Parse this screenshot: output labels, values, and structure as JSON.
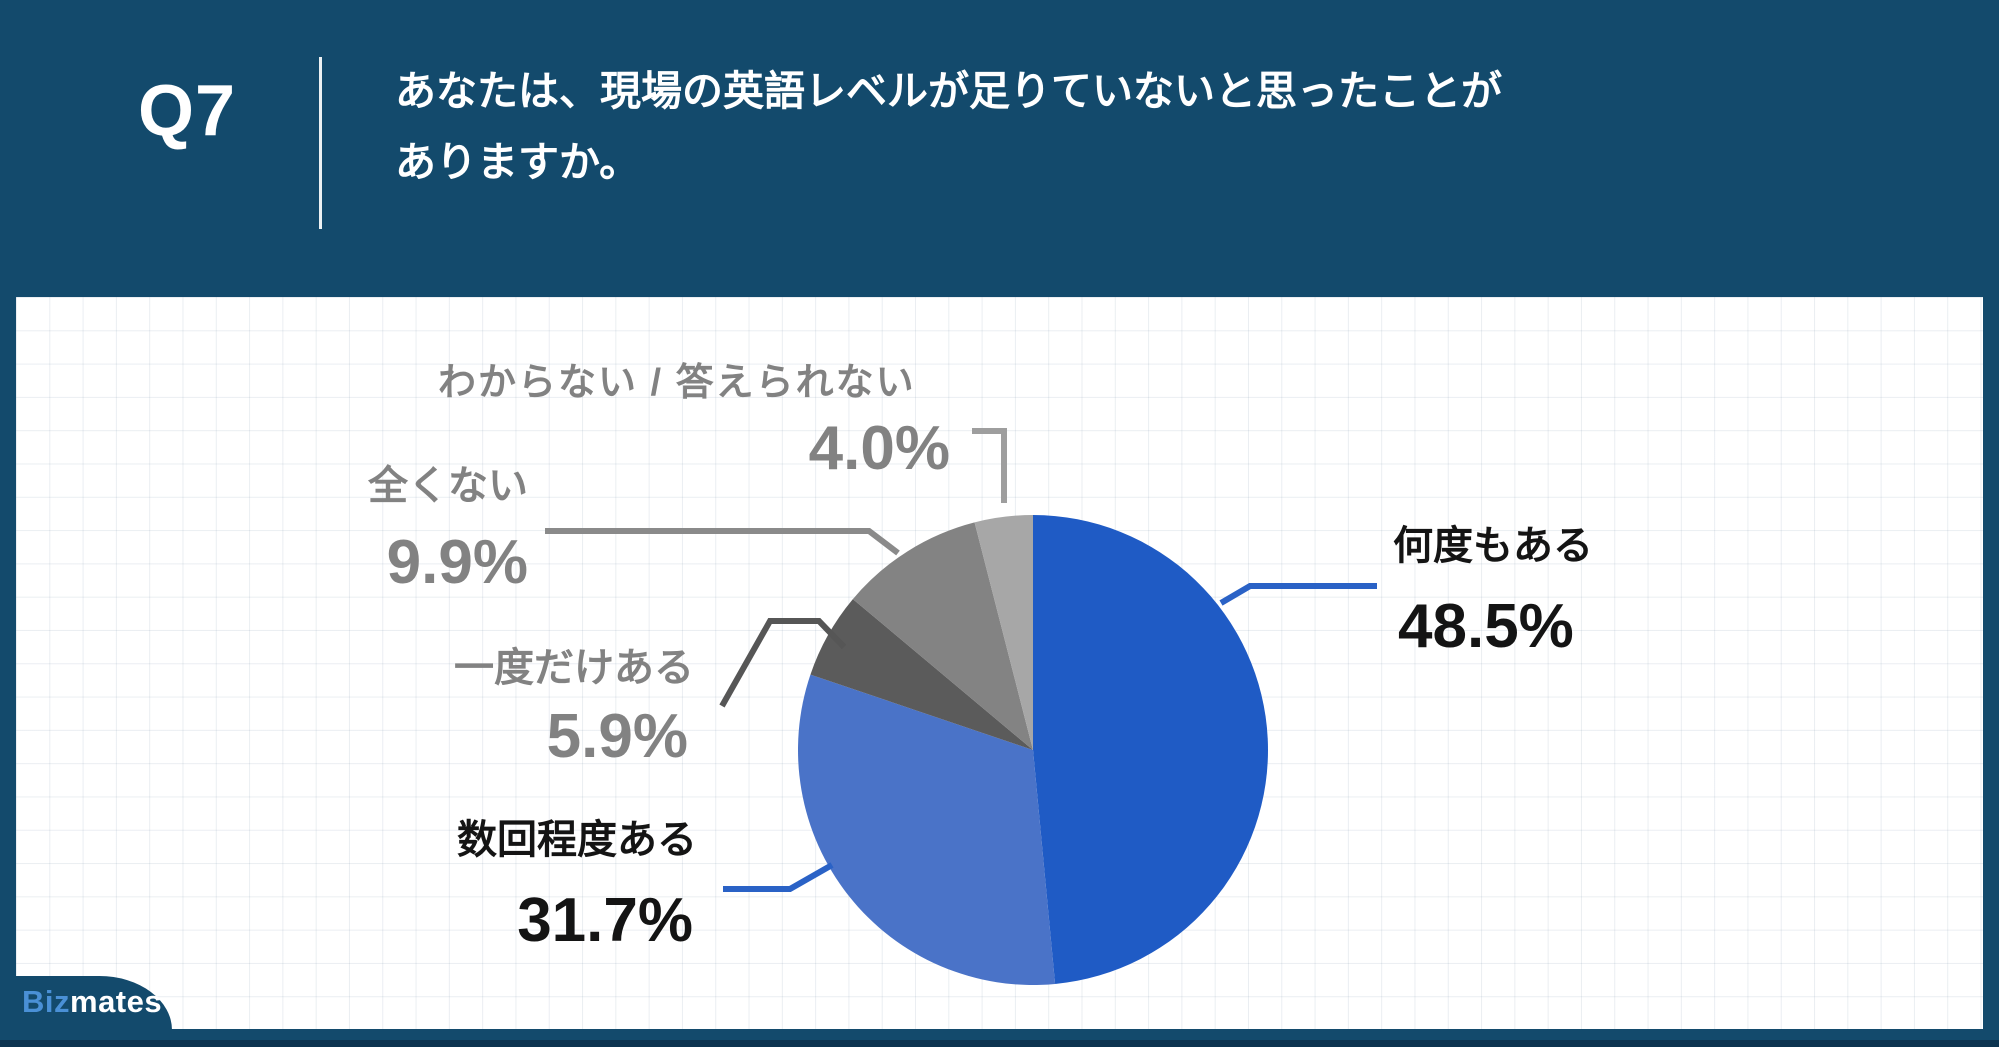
{
  "header": {
    "question_number": "Q7",
    "question_line1": "あなたは、現場の英語レベルが足りていないと思ったことが",
    "question_line2": "ありますか。"
  },
  "footer": {
    "brand_prefix": "Biz",
    "brand_suffix": "mates"
  },
  "chart_data": {
    "type": "pie",
    "title": "",
    "unit": "%",
    "categories": [
      "何度もある",
      "数回程度ある",
      "一度だけある",
      "全くない",
      "わからない / 答えられない"
    ],
    "values": [
      48.5,
      31.7,
      5.9,
      9.9,
      4.0
    ],
    "display_values": [
      "48.5%",
      "31.7%",
      "5.9%",
      "9.9%",
      "4.0%"
    ],
    "slice_colors": [
      "#1F5BC5",
      "#4A73C8",
      "#5B5B5B",
      "#838383",
      "#A7A7A7"
    ],
    "start_angle_deg": 0,
    "direction": "clockwise",
    "legend_position": "none",
    "label_style": "direct category + percent labels connected with elbow leader lines"
  },
  "ui_colors": {
    "background_navy": "#134A6C",
    "bottom_edge_navy": "#0C3450",
    "panel_white": "#FFFFFF",
    "label_gray": "#828282",
    "label_black": "#141414",
    "leader_blue": "#2A62C6",
    "leader_gray": "#8A8A8A",
    "leader_dark_gray": "#565656",
    "leader_light_gray": "#9E9E9E",
    "brand_blue": "#4A90D6"
  }
}
